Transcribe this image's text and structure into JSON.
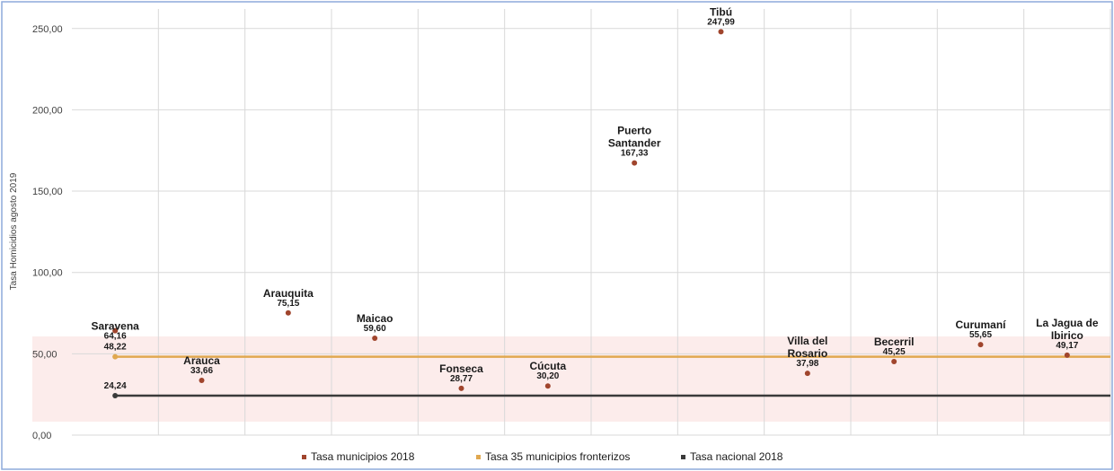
{
  "chart_data": {
    "type": "scatter",
    "ylabel": "Tasa Homicidios agosto 2019",
    "ylim": [
      0,
      262
    ],
    "yticks": [
      "0,00",
      "50,00",
      "100,00",
      "150,00",
      "200,00",
      "250,00"
    ],
    "ytick_values": [
      0,
      50,
      100,
      150,
      200,
      250
    ],
    "grid": true,
    "legend_position": "bottom",
    "colors": {
      "municipios": "#a0452d",
      "fronterizos": "#e0a850",
      "nacional": "#3a3a3a",
      "band": "#fbe9e7",
      "frame": "#8eaadb"
    },
    "series": [
      {
        "name": "Tasa municipios  2018",
        "points": [
          {
            "label": "Saravena",
            "value_text": "64,16",
            "value": 64.16
          },
          {
            "label": "Arauca",
            "value_text": "33,66",
            "value": 33.66
          },
          {
            "label": "Arauquita",
            "value_text": "75,15",
            "value": 75.15
          },
          {
            "label": "Maicao",
            "value_text": "59,60",
            "value": 59.6
          },
          {
            "label": "Fonseca",
            "value_text": "28,77",
            "value": 28.77
          },
          {
            "label": "Cúcuta",
            "value_text": "30,20",
            "value": 30.2
          },
          {
            "label": "Puerto Santander",
            "label_lines": [
              "Puerto",
              "Santander"
            ],
            "value_text": "167,33",
            "value": 167.33
          },
          {
            "label": "Tibú",
            "value_text": "247,99",
            "value": 247.99
          },
          {
            "label": "Villa del Rosario",
            "label_lines": [
              "Villa del",
              "Rosario"
            ],
            "value_text": "37,98",
            "value": 37.98
          },
          {
            "label": "Becerril",
            "value_text": "45,25",
            "value": 45.25
          },
          {
            "label": "Curumaní",
            "value_text": "55,65",
            "value": 55.65
          },
          {
            "label": "La Jagua de Ibirico",
            "label_lines": [
              "La Jagua de",
              "Ibirico"
            ],
            "value_text": "49,17",
            "value": 49.17
          }
        ]
      },
      {
        "name": "Tasa 35 municipios fronterizos",
        "value_text": "48,22",
        "value": 48.22
      },
      {
        "name": "Tasa nacional 2018",
        "value_text": "24,24",
        "value": 24.24
      }
    ]
  }
}
